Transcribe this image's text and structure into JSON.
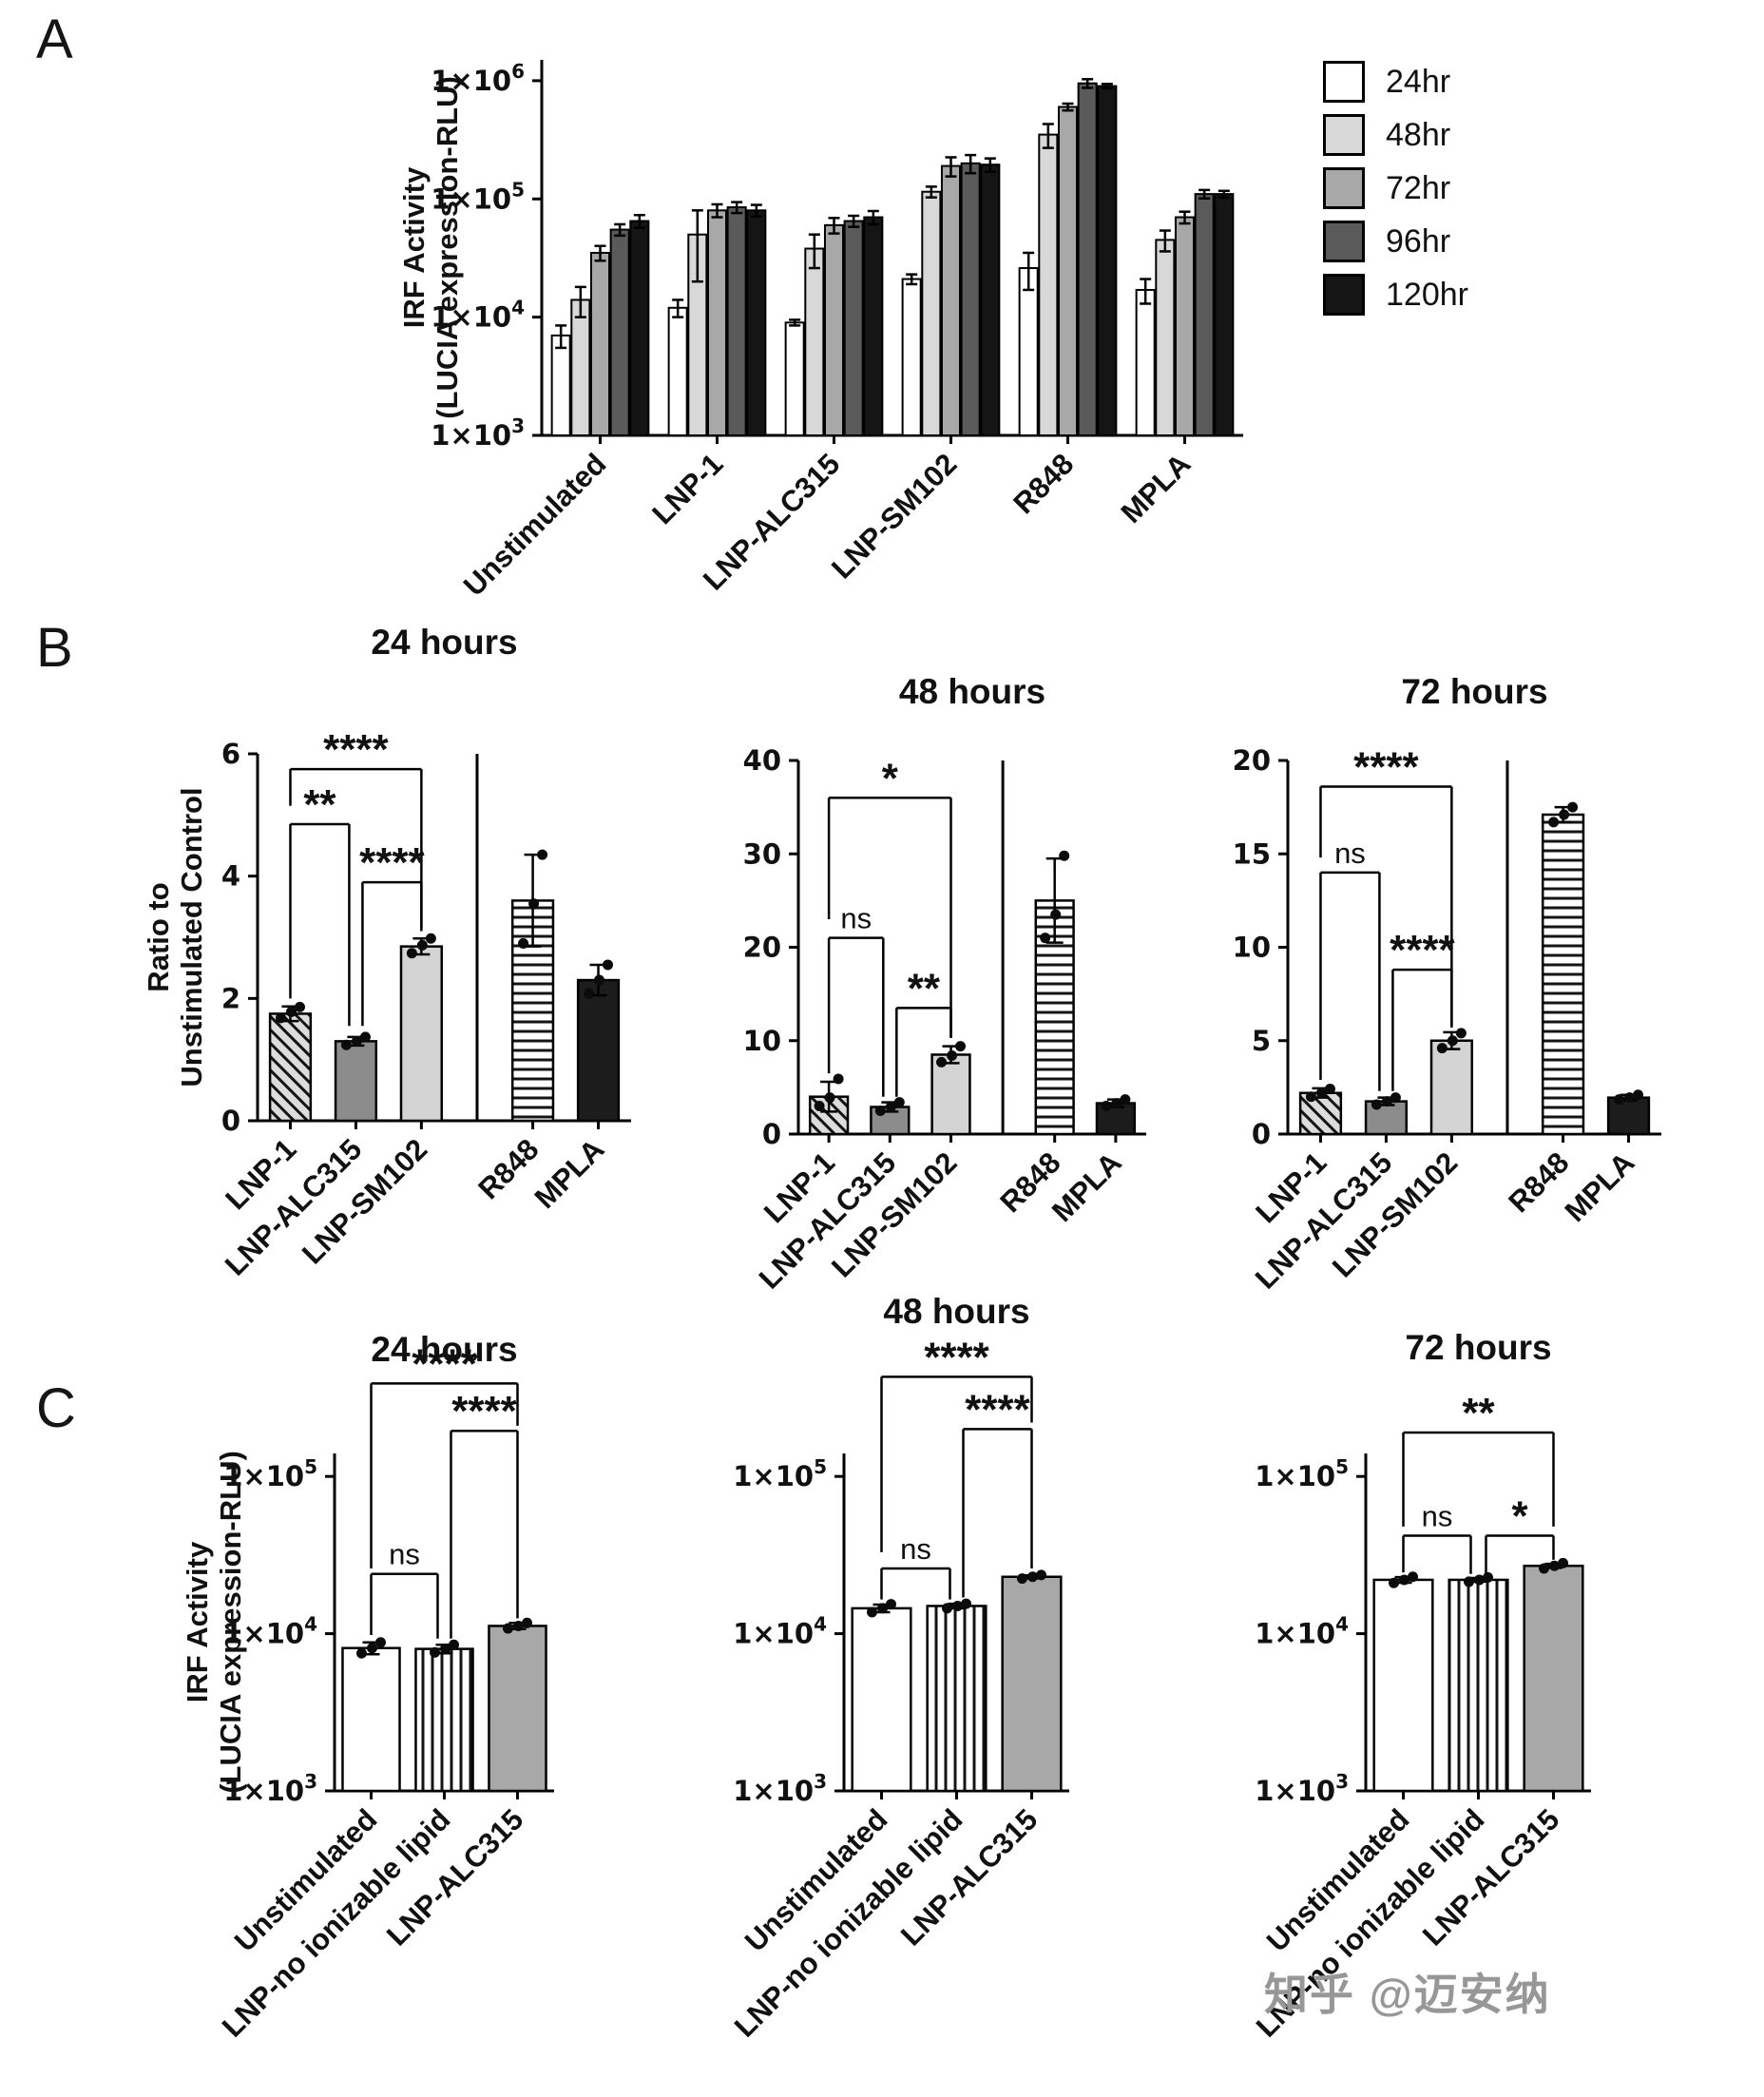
{
  "figure": {
    "panels": {
      "a": "A",
      "b": "B",
      "c": "C"
    },
    "watermark": "知乎 @迈安纳"
  },
  "legend": {
    "items": [
      {
        "label": "24hr",
        "fill": "#ffffff"
      },
      {
        "label": "48hr",
        "fill": "#d8d8d8"
      },
      {
        "label": "72hr",
        "fill": "#a8a8a8"
      },
      {
        "label": "96hr",
        "fill": "#5a5a5a"
      },
      {
        "label": "120hr",
        "fill": "#151515"
      }
    ]
  },
  "bar_styles": {
    "diag": {
      "pattern": "diagonal-hatch",
      "base": "#dcdcdc"
    },
    "hlines": {
      "pattern": "horizontal-lines",
      "base": "#ffffff"
    },
    "vlines": {
      "pattern": "vertical-lines",
      "base": "#ffffff"
    },
    "white": {
      "fill": "#ffffff"
    },
    "lightgray": {
      "fill": "#d4d4d4"
    },
    "darkgray": {
      "fill": "#8c8c8c"
    },
    "gray": {
      "fill": "#a8a8a8"
    },
    "black": {
      "fill": "#1c1c1c"
    }
  },
  "chart_data": [
    {
      "id": "A",
      "type": "bar",
      "scale": "log",
      "title": "",
      "ylabel": [
        "IRF Activity",
        "(LUCIA expression-RLU)"
      ],
      "ylim": [
        1000,
        1500000
      ],
      "yticks": [
        {
          "v": 1000,
          "label": "1×10^3"
        },
        {
          "v": 10000,
          "label": "1×10^4"
        },
        {
          "v": 100000,
          "label": "1×10^5"
        },
        {
          "v": 1000000,
          "label": "1×10^6"
        }
      ],
      "categories": [
        "Unstimulated",
        "LNP-1",
        "LNP-ALC315",
        "LNP-SM102",
        "R848",
        "MPLA"
      ],
      "series": [
        {
          "name": "24hr",
          "fill": "#ffffff",
          "values": [
            7000,
            12000,
            9000,
            21000,
            26000,
            17000
          ],
          "errors": [
            1500,
            2000,
            500,
            2000,
            9000,
            4000
          ]
        },
        {
          "name": "48hr",
          "fill": "#d8d8d8",
          "values": [
            14000,
            50000,
            38000,
            115000,
            350000,
            45000
          ],
          "errors": [
            4000,
            30000,
            12000,
            12000,
            80000,
            9000
          ]
        },
        {
          "name": "72hr",
          "fill": "#a8a8a8",
          "values": [
            35000,
            80000,
            60000,
            190000,
            600000,
            70000
          ],
          "errors": [
            5000,
            10000,
            9000,
            35000,
            40000,
            8000
          ]
        },
        {
          "name": "96hr",
          "fill": "#5a5a5a",
          "values": [
            55000,
            85000,
            65000,
            200000,
            950000,
            110000
          ],
          "errors": [
            6000,
            9000,
            7000,
            35000,
            80000,
            9000
          ]
        },
        {
          "name": "120hr",
          "fill": "#151515",
          "values": [
            65000,
            80000,
            70000,
            195000,
            900000,
            110000
          ],
          "errors": [
            8000,
            9000,
            9000,
            25000,
            40000,
            7000
          ]
        }
      ]
    },
    {
      "id": "B24",
      "type": "bar",
      "scale": "linear",
      "title": "24 hours",
      "ylabel": [
        "Ratio to",
        "Unstimulated Control"
      ],
      "ylim": [
        0,
        6
      ],
      "yticks": [
        {
          "v": 0,
          "label": "0"
        },
        {
          "v": 2,
          "label": "2"
        },
        {
          "v": 4,
          "label": "4"
        },
        {
          "v": 6,
          "label": "6"
        }
      ],
      "categories": [
        "LNP-1",
        "LNP-ALC315",
        "LNP-SM102",
        "R848",
        "MPLA"
      ],
      "separator_after": 2,
      "bars": [
        {
          "value": 1.75,
          "error": 0.12,
          "style": "diag",
          "points": [
            1.68,
            1.78,
            1.86
          ]
        },
        {
          "value": 1.3,
          "error": 0.07,
          "style": "darkgray",
          "points": [
            1.24,
            1.3,
            1.37
          ]
        },
        {
          "value": 2.85,
          "error": 0.13,
          "style": "lightgray",
          "points": [
            2.74,
            2.87,
            2.98
          ]
        },
        {
          "value": 3.6,
          "error": 0.75,
          "style": "hlines",
          "points": [
            2.9,
            3.55,
            4.35
          ]
        },
        {
          "value": 2.3,
          "error": 0.25,
          "style": "black",
          "points": [
            2.08,
            2.3,
            2.55
          ]
        }
      ],
      "brackets": [
        {
          "from": 0,
          "to": 2,
          "y": 5.75,
          "label": "****",
          "drops": [
            5.15,
            3.15
          ]
        },
        {
          "from": 0,
          "to": 1,
          "y": 4.85,
          "label": "**",
          "drops": [
            2.0,
            1.55
          ],
          "dx": [
            0,
            -7
          ]
        },
        {
          "from": 1,
          "to": 2,
          "y": 3.9,
          "label": "****",
          "drops": [
            1.55,
            3.1
          ],
          "dx": [
            7,
            0
          ]
        }
      ]
    },
    {
      "id": "B48",
      "type": "bar",
      "scale": "linear",
      "title": "48 hours",
      "ylim": [
        0,
        40
      ],
      "yticks": [
        {
          "v": 0,
          "label": "0"
        },
        {
          "v": 10,
          "label": "10"
        },
        {
          "v": 20,
          "label": "20"
        },
        {
          "v": 30,
          "label": "30"
        },
        {
          "v": 40,
          "label": "40"
        }
      ],
      "categories": [
        "LNP-1",
        "LNP-ALC315",
        "LNP-SM102",
        "R848",
        "MPLA"
      ],
      "separator_after": 2,
      "bars": [
        {
          "value": 4.0,
          "error": 1.6,
          "style": "diag",
          "points": [
            3.0,
            3.9,
            5.9
          ]
        },
        {
          "value": 2.9,
          "error": 0.5,
          "style": "darkgray",
          "points": [
            2.5,
            2.9,
            3.4
          ]
        },
        {
          "value": 8.5,
          "error": 0.9,
          "style": "lightgray",
          "points": [
            7.7,
            8.4,
            9.4
          ]
        },
        {
          "value": 25,
          "error": 4.5,
          "style": "hlines",
          "points": [
            21,
            23.5,
            29.8
          ]
        },
        {
          "value": 3.3,
          "error": 0.4,
          "style": "black",
          "points": [
            3.0,
            3.3,
            3.7
          ]
        }
      ],
      "brackets": [
        {
          "from": 0,
          "to": 2,
          "y": 36,
          "label": "*",
          "drops": [
            23,
            10.3
          ]
        },
        {
          "from": 0,
          "to": 1,
          "y": 21,
          "label": "ns",
          "drops": [
            6.5,
            4.0
          ],
          "dx": [
            0,
            -7
          ]
        },
        {
          "from": 1,
          "to": 2,
          "y": 13.5,
          "label": "**",
          "drops": [
            4.0,
            10.3
          ],
          "dx": [
            7,
            0
          ]
        }
      ]
    },
    {
      "id": "B72",
      "type": "bar",
      "scale": "linear",
      "title": "72 hours",
      "ylim": [
        0,
        20
      ],
      "yticks": [
        {
          "v": 0,
          "label": "0"
        },
        {
          "v": 5,
          "label": "5"
        },
        {
          "v": 10,
          "label": "10"
        },
        {
          "v": 15,
          "label": "15"
        },
        {
          "v": 20,
          "label": "20"
        }
      ],
      "categories": [
        "LNP-1",
        "LNP-ALC315",
        "LNP-SM102",
        "R848",
        "MPLA"
      ],
      "separator_after": 2,
      "bars": [
        {
          "value": 2.2,
          "error": 0.25,
          "style": "diag",
          "points": [
            2.0,
            2.2,
            2.42
          ]
        },
        {
          "value": 1.75,
          "error": 0.2,
          "style": "darkgray",
          "points": [
            1.58,
            1.75,
            1.95
          ]
        },
        {
          "value": 5.0,
          "error": 0.45,
          "style": "lightgray",
          "points": [
            4.6,
            5.0,
            5.4
          ]
        },
        {
          "value": 17.1,
          "error": 0.4,
          "style": "hlines",
          "points": [
            16.7,
            17.1,
            17.5
          ]
        },
        {
          "value": 1.95,
          "error": 0.15,
          "style": "black",
          "points": [
            1.85,
            1.95,
            2.1
          ]
        }
      ],
      "brackets": [
        {
          "from": 0,
          "to": 2,
          "y": 18.6,
          "label": "****",
          "drops": [
            14.8,
            5.8
          ]
        },
        {
          "from": 0,
          "to": 1,
          "y": 14,
          "label": "ns",
          "drops": [
            2.9,
            2.3
          ],
          "dx": [
            0,
            -7
          ]
        },
        {
          "from": 1,
          "to": 2,
          "y": 8.8,
          "label": "****",
          "drops": [
            2.3,
            5.7
          ],
          "dx": [
            7,
            0
          ]
        }
      ]
    },
    {
      "id": "C24",
      "type": "bar",
      "scale": "log",
      "title": "24 hours",
      "ylabel": [
        "IRF Activity",
        "(LUCIA expression-RLU)"
      ],
      "ylim": [
        1000,
        140000
      ],
      "yticks": [
        {
          "v": 1000,
          "label": "1×10^3"
        },
        {
          "v": 10000,
          "label": "1×10^4"
        },
        {
          "v": 100000,
          "label": "1×10^5"
        }
      ],
      "categories": [
        "Unstimulated",
        "LNP-no ionizable lipid",
        "LNP-ALC315"
      ],
      "bars": [
        {
          "value": 8100,
          "error": 700,
          "style": "white",
          "points": [
            7500,
            8100,
            8800
          ]
        },
        {
          "value": 8000,
          "error": 500,
          "style": "vlines",
          "points": [
            7600,
            8000,
            8500
          ]
        },
        {
          "value": 11200,
          "error": 500,
          "style": "gray",
          "points": [
            10800,
            11200,
            11700
          ]
        }
      ],
      "brackets": [
        {
          "from": 0,
          "to": 2,
          "y": 390000,
          "label": "****",
          "drops": [
            26000,
            210000
          ]
        },
        {
          "from": 1,
          "to": 2,
          "y": 195000,
          "label": "****",
          "drops": [
            9300,
            12500
          ],
          "dx": [
            7,
            0
          ]
        },
        {
          "from": 0,
          "to": 1,
          "y": 24000,
          "label": "ns",
          "drops": [
            9800,
            9300
          ],
          "dx": [
            0,
            -7
          ]
        }
      ]
    },
    {
      "id": "C48",
      "type": "bar",
      "scale": "log",
      "title": "48 hours",
      "ylim": [
        1000,
        140000
      ],
      "yticks": [
        {
          "v": 1000,
          "label": "1×10^3"
        },
        {
          "v": 10000,
          "label": "1×10^4"
        },
        {
          "v": 100000,
          "label": "1×10^5"
        }
      ],
      "categories": [
        "Unstimulated",
        "LNP-no ionizable lipid",
        "LNP-ALC315"
      ],
      "bars": [
        {
          "value": 14500,
          "error": 800,
          "style": "white",
          "points": [
            13700,
            14500,
            15400
          ]
        },
        {
          "value": 15000,
          "error": 500,
          "style": "vlines",
          "points": [
            14500,
            15000,
            15500
          ]
        },
        {
          "value": 23000,
          "error": 500,
          "style": "gray",
          "points": [
            22400,
            23000,
            23600
          ]
        }
      ],
      "brackets": [
        {
          "from": 0,
          "to": 2,
          "y": 430000,
          "label": "****",
          "drops": [
            33000,
            220000
          ]
        },
        {
          "from": 1,
          "to": 2,
          "y": 200000,
          "label": "****",
          "drops": [
            17000,
            26000
          ],
          "dx": [
            7,
            0
          ]
        },
        {
          "from": 0,
          "to": 1,
          "y": 26000,
          "label": "ns",
          "drops": [
            16500,
            16500
          ],
          "dx": [
            0,
            -7
          ]
        }
      ]
    },
    {
      "id": "C72",
      "type": "bar",
      "scale": "log",
      "title": "72 hours",
      "ylim": [
        1000,
        140000
      ],
      "yticks": [
        {
          "v": 1000,
          "label": "1×10^3"
        },
        {
          "v": 10000,
          "label": "1×10^4"
        },
        {
          "v": 100000,
          "label": "1×10^5"
        }
      ],
      "categories": [
        "Unstimulated",
        "LNP-no ionizable lipid",
        "LNP-ALC315"
      ],
      "bars": [
        {
          "value": 22000,
          "error": 900,
          "style": "white",
          "points": [
            21000,
            22000,
            23000
          ]
        },
        {
          "value": 22000,
          "error": 600,
          "style": "vlines",
          "points": [
            21400,
            22000,
            22800
          ]
        },
        {
          "value": 27000,
          "error": 800,
          "style": "gray",
          "points": [
            26000,
            27000,
            28100
          ]
        }
      ],
      "brackets": [
        {
          "from": 0,
          "to": 2,
          "y": 190000,
          "label": "**",
          "drops": [
            48000,
            48000
          ]
        },
        {
          "from": 0,
          "to": 1,
          "y": 42000,
          "label": "ns",
          "drops": [
            24500,
            24000
          ],
          "dx": [
            0,
            -8
          ]
        },
        {
          "from": 1,
          "to": 2,
          "y": 42000,
          "label": "*",
          "drops": [
            24000,
            29500
          ],
          "dx": [
            8,
            0
          ]
        }
      ]
    }
  ]
}
